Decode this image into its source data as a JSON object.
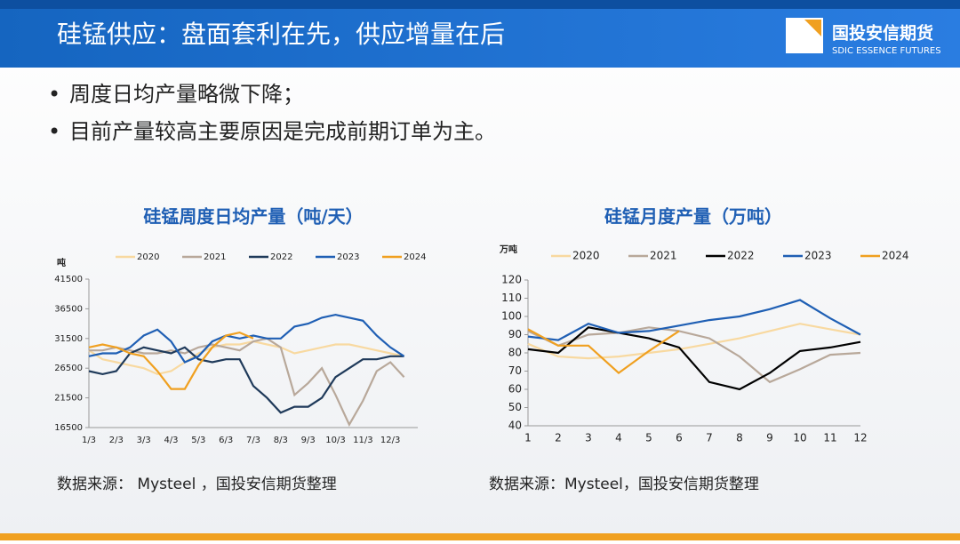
{
  "header": {
    "title": "硅锰供应：盘面套利在先，供应增量在后",
    "logo_cn": "国投安信期货",
    "logo_en": "SDIC ESSENCE FUTURES"
  },
  "bullets": [
    "周度日均产量略微下降；",
    "目前产量较高主要原因是完成前期订单为主。"
  ],
  "sources": [
    "数据来源：  Mysteel ，国投安信期货整理",
    "数据来源：Mysteel，国投安信期货整理"
  ],
  "chart_data": [
    {
      "type": "line",
      "title": "硅锰周度日均产量（吨/天）",
      "y_label": "吨",
      "categories": [
        "1/3",
        null,
        "2/3",
        null,
        "3/3",
        null,
        "4/3",
        null,
        "5/3",
        null,
        "6/3",
        null,
        "7/3",
        null,
        "8/3",
        null,
        "9/3",
        null,
        "10/3",
        null,
        "11/3",
        null,
        "12/3",
        null
      ],
      "ylim": [
        16500,
        41500
      ],
      "yticks": [
        16500,
        21500,
        26500,
        31500,
        36500,
        41500
      ],
      "series": [
        {
          "name": "2020",
          "color": "#f8d9a0",
          "values": [
            29500,
            28000,
            27500,
            27000,
            26500,
            25500,
            26000,
            27500,
            29000,
            30000,
            30500,
            30500,
            31000,
            30500,
            30000,
            29000,
            29500,
            30000,
            30500,
            30500,
            30000,
            29500,
            29000,
            28500
          ]
        },
        {
          "name": "2021",
          "color": "#b8a89a",
          "values": [
            29500,
            29500,
            30000,
            29500,
            29000,
            29000,
            29500,
            29000,
            30000,
            30500,
            30000,
            29500,
            31000,
            31500,
            30000,
            22000,
            24000,
            26500,
            22000,
            17000,
            21000,
            26000,
            27500,
            25000
          ]
        },
        {
          "name": "2022",
          "color": "#1f3a5a",
          "values": [
            26000,
            25500,
            26000,
            29000,
            30000,
            29500,
            29000,
            30000,
            28000,
            27500,
            28000,
            28000,
            23500,
            21500,
            19000,
            20000,
            20000,
            21500,
            25000,
            26500,
            28000,
            28000,
            28500,
            28500
          ]
        },
        {
          "name": "2023",
          "color": "#1f5fb4",
          "values": [
            28500,
            29000,
            29000,
            30000,
            32000,
            33000,
            31000,
            27500,
            28500,
            31000,
            32000,
            31500,
            32000,
            31500,
            31500,
            33500,
            34000,
            35000,
            35500,
            35000,
            34500,
            32000,
            30000,
            28500
          ]
        },
        {
          "name": "2024",
          "color": "#f0a020",
          "values": [
            30000,
            30500,
            30000,
            29000,
            28500,
            26000,
            23000,
            23000,
            27000,
            30000,
            32000,
            32500,
            31500,
            null,
            null,
            null,
            null,
            null,
            null,
            null,
            null,
            null,
            null,
            null
          ]
        }
      ]
    },
    {
      "type": "line",
      "title": "硅锰月度产量（万吨）",
      "y_label": "万吨",
      "categories": [
        "1",
        "2",
        "3",
        "4",
        "5",
        "6",
        "7",
        "8",
        "9",
        "10",
        "11",
        "12"
      ],
      "ylim": [
        40,
        120
      ],
      "yticks": [
        40,
        50,
        60,
        70,
        80,
        90,
        100,
        110,
        120
      ],
      "series": [
        {
          "name": "2020",
          "color": "#f8d9a0",
          "values": [
            85,
            78,
            77,
            78,
            80,
            82,
            85,
            88,
            92,
            96,
            93,
            90
          ]
        },
        {
          "name": "2021",
          "color": "#b8a89a",
          "values": [
            92,
            84,
            90,
            91,
            94,
            92,
            88,
            78,
            64,
            71,
            79,
            80
          ]
        },
        {
          "name": "2022",
          "color": "#000000",
          "values": [
            82,
            80,
            94,
            91,
            88,
            83,
            64,
            60,
            69,
            81,
            83,
            86
          ]
        },
        {
          "name": "2023",
          "color": "#1f5fb4",
          "values": [
            89,
            87,
            96,
            91,
            92,
            95,
            98,
            100,
            104,
            109,
            99,
            90
          ]
        },
        {
          "name": "2024",
          "color": "#f0a020",
          "values": [
            93,
            84,
            84,
            69,
            81,
            92,
            null,
            null,
            null,
            null,
            null,
            null
          ]
        }
      ]
    }
  ]
}
